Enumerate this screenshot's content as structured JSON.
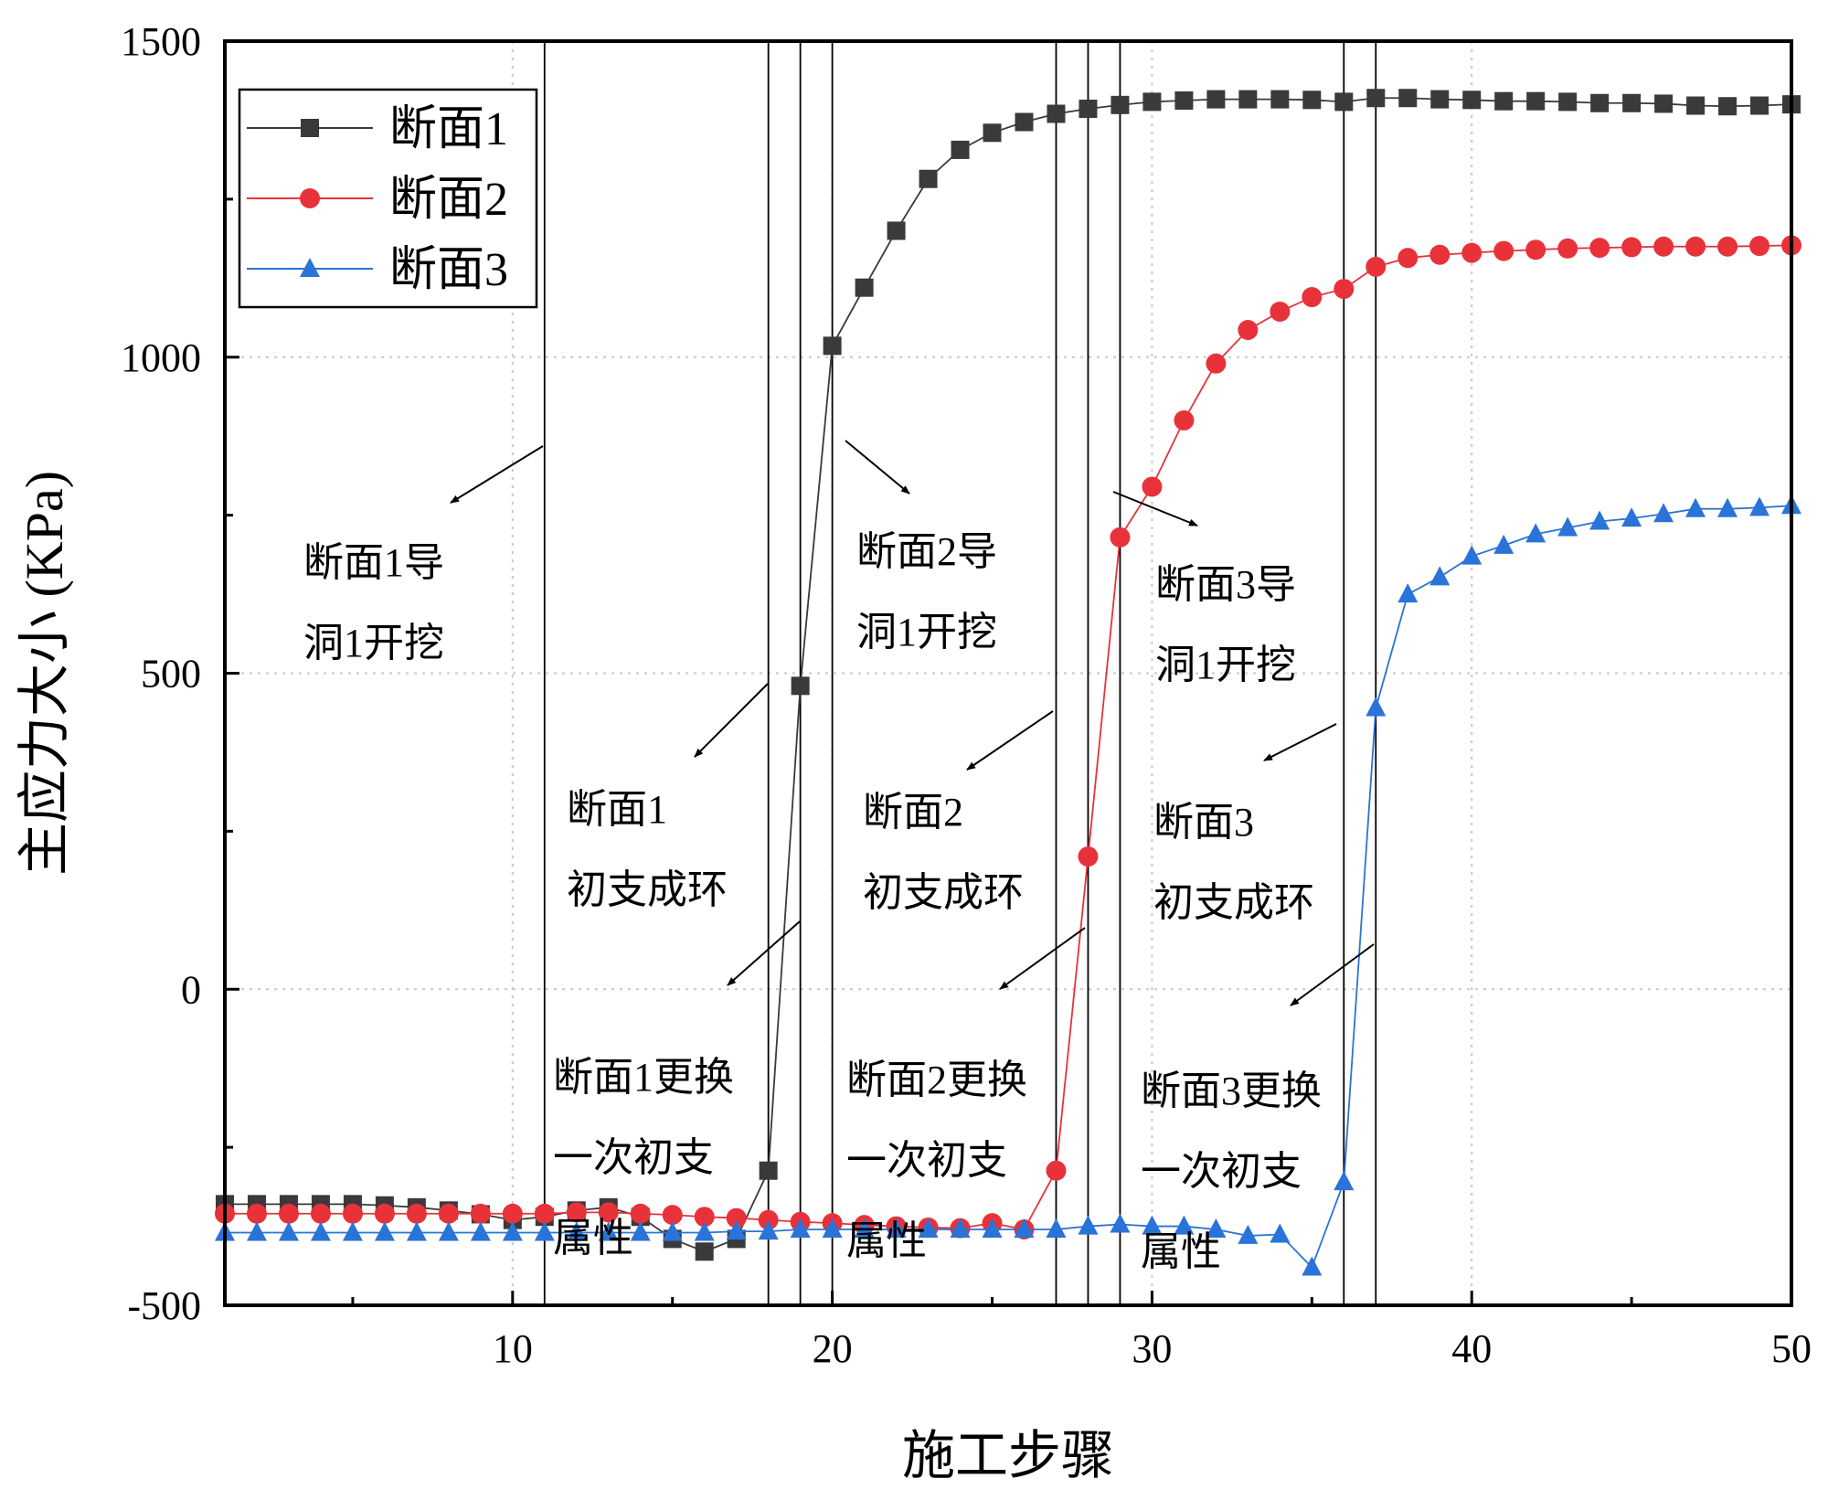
{
  "chart_data": {
    "type": "line",
    "xlabel": "施工步骤",
    "ylabel": "主应力大小 (KPa)",
    "xlim": [
      1,
      50
    ],
    "ylim": [
      -500,
      1500
    ],
    "xticks": [
      10,
      20,
      30,
      40,
      50
    ],
    "yticks": [
      -500,
      0,
      500,
      1000,
      1500
    ],
    "grid": true,
    "legend_position": "top-left",
    "x": [
      1,
      2,
      3,
      4,
      5,
      6,
      7,
      8,
      9,
      10,
      11,
      12,
      13,
      14,
      15,
      16,
      17,
      18,
      19,
      20,
      21,
      22,
      23,
      24,
      25,
      26,
      27,
      28,
      29,
      30,
      31,
      32,
      33,
      34,
      35,
      36,
      37,
      38,
      39,
      40,
      41,
      42,
      43,
      44,
      45,
      46,
      47,
      48,
      49,
      50
    ],
    "series": [
      {
        "name": "断面1",
        "color": "#3a3a3a",
        "marker": "square",
        "values": [
          -340,
          -340,
          -340,
          -340,
          -340,
          -342,
          -345,
          -350,
          -356,
          -365,
          -360,
          -350,
          -345,
          -360,
          -395,
          -415,
          -395,
          -287,
          480,
          1018,
          1110,
          1200,
          1282,
          1328,
          1355,
          1372,
          1385,
          1393,
          1399,
          1404,
          1406,
          1408,
          1408,
          1408,
          1407,
          1404,
          1410,
          1410,
          1408,
          1407,
          1405,
          1405,
          1404,
          1402,
          1402,
          1401,
          1398,
          1397,
          1398,
          1400
        ]
      },
      {
        "name": "断面2",
        "color": "#e8323a",
        "marker": "circle",
        "values": [
          -355,
          -355,
          -355,
          -355,
          -355,
          -355,
          -355,
          -355,
          -355,
          -355,
          -355,
          -353,
          -353,
          -355,
          -357,
          -360,
          -362,
          -365,
          -368,
          -370,
          -373,
          -375,
          -377,
          -378,
          -370,
          -380,
          -287,
          210,
          715,
          795,
          900,
          990,
          1043,
          1072,
          1095,
          1108,
          1143,
          1157,
          1162,
          1165,
          1168,
          1170,
          1172,
          1173,
          1174,
          1175,
          1175,
          1175,
          1176,
          1177
        ]
      },
      {
        "name": "断面3",
        "color": "#2a73d8",
        "marker": "triangle",
        "values": [
          -385,
          -385,
          -385,
          -385,
          -385,
          -385,
          -385,
          -385,
          -385,
          -385,
          -385,
          -385,
          -385,
          -385,
          -385,
          -385,
          -383,
          -383,
          -380,
          -380,
          -380,
          -380,
          -380,
          -380,
          -380,
          -380,
          -380,
          -375,
          -372,
          -375,
          -375,
          -380,
          -390,
          -388,
          -440,
          -305,
          445,
          625,
          652,
          685,
          702,
          720,
          730,
          740,
          745,
          752,
          760,
          760,
          762,
          765
        ]
      }
    ],
    "vlines": [
      11,
      18,
      19,
      20,
      27,
      28,
      29,
      36,
      37
    ],
    "annotations": [
      {
        "lines": [
          "断面1导",
          "洞1开挖"
        ]
      },
      {
        "lines": [
          "断面2导",
          "洞1开挖"
        ]
      },
      {
        "lines": [
          "断面3导",
          "洞1开挖"
        ]
      },
      {
        "lines": [
          "断面1",
          "初支成环"
        ]
      },
      {
        "lines": [
          "断面2",
          "初支成环"
        ]
      },
      {
        "lines": [
          "断面3",
          "初支成环"
        ]
      },
      {
        "lines": [
          "断面1更换",
          "一次初支",
          "属性"
        ]
      },
      {
        "lines": [
          "断面2更换",
          "一次初支",
          "属性"
        ]
      },
      {
        "lines": [
          "断面3更换",
          "一次初支",
          "属性"
        ]
      }
    ]
  }
}
